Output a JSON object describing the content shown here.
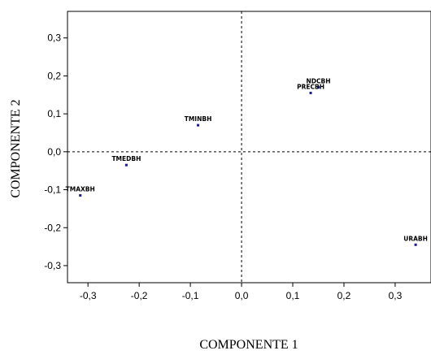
{
  "chart_data": {
    "type": "scatter",
    "xlabel": "COMPONENTE 1",
    "ylabel": "COMPONENTE 2",
    "xlim": [
      -0.34,
      0.37
    ],
    "ylim": [
      -0.345,
      0.37
    ],
    "xticks": [
      -0.3,
      -0.2,
      -0.1,
      0.0,
      0.1,
      0.2,
      0.3
    ],
    "xtick_labels": [
      "-0,3",
      "-0,2",
      "-0,1",
      "0,0",
      "0,1",
      "0,2",
      "0,3"
    ],
    "yticks": [
      0.3,
      0.2,
      0.1,
      0.0,
      -0.1,
      -0.2,
      -0.3
    ],
    "ytick_labels": [
      "0,3",
      "0,2",
      "0,1",
      "0,0",
      "-0,1",
      "-0,2",
      "-0,3"
    ],
    "reference_lines": {
      "x": 0.0,
      "y": 0.0,
      "style": "dashed"
    },
    "grid": false,
    "point_color": "#1a1a8c",
    "points": [
      {
        "label": "NDCBH",
        "x": 0.15,
        "y": 0.17
      },
      {
        "label": "PRECBH",
        "x": 0.135,
        "y": 0.155
      },
      {
        "label": "TMINBH",
        "x": -0.085,
        "y": 0.07
      },
      {
        "label": "TMEDBH",
        "x": -0.225,
        "y": -0.035
      },
      {
        "label": "TMAXBH",
        "x": -0.315,
        "y": -0.115
      },
      {
        "label": "URABH",
        "x": 0.34,
        "y": -0.245
      }
    ]
  }
}
